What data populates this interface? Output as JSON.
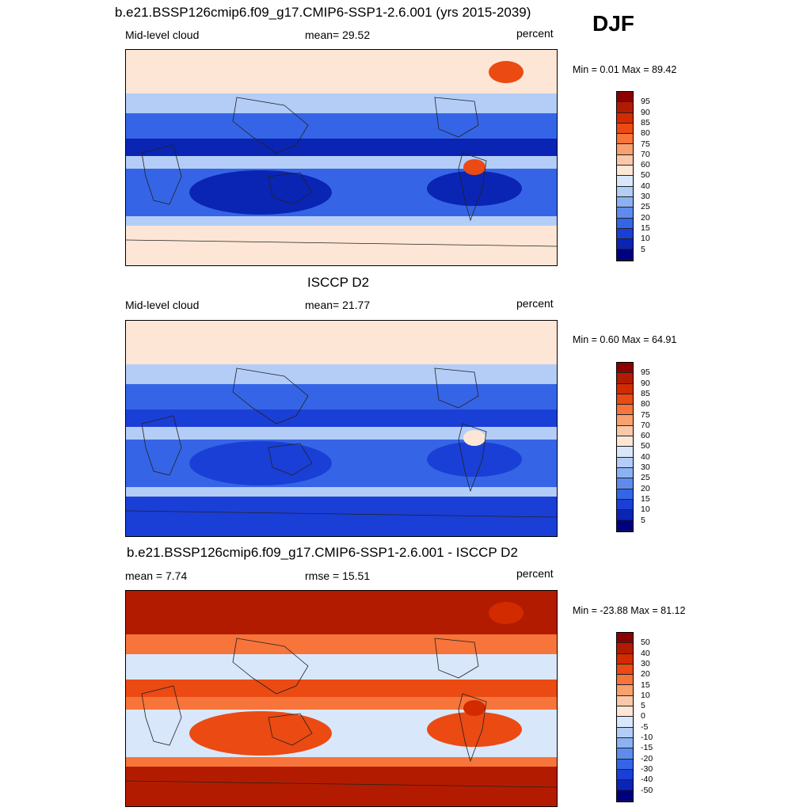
{
  "season": "DJF",
  "panels": [
    {
      "title": "b.e21.BSSP126cmip6.f09_g17.CMIP6-SSP1-2.6.001 (yrs 2015-2039)",
      "left_label": "Mid-level cloud",
      "center_label": "mean=  29.52",
      "units": "percent",
      "minmax": "Min =   0.01 Max =  89.42",
      "colorbar_labels": [
        "95",
        "90",
        "85",
        "80",
        "75",
        "70",
        "60",
        "50",
        "40",
        "30",
        "25",
        "20",
        "15",
        "10",
        "5"
      ],
      "colorbar_colors": [
        "#8b0000",
        "#b31b00",
        "#d22b00",
        "#eb4a13",
        "#f7743a",
        "#f9a06f",
        "#fac7a8",
        "#fde6d6",
        "#d9e7fb",
        "#b3cdf7",
        "#8cb1f2",
        "#5f8cec",
        "#3565e6",
        "#1a3fd6",
        "#0a24b4",
        "#00007e"
      ],
      "palette_map": {
        "south_pole_band": "#fde6d6",
        "tropical_band": "#0a24b4",
        "subtropical_band": "#3565e6",
        "midlat_band": "#b3cdf7",
        "highlight": "#eb4a13"
      }
    },
    {
      "title": "ISCCP D2",
      "left_label": "Mid-level cloud",
      "center_label": "mean=  21.77",
      "units": "percent",
      "minmax": "Min =   0.60 Max =  64.91",
      "colorbar_labels": [
        "95",
        "90",
        "85",
        "80",
        "75",
        "70",
        "60",
        "50",
        "40",
        "30",
        "25",
        "20",
        "15",
        "10",
        "5"
      ],
      "colorbar_colors": [
        "#8b0000",
        "#b31b00",
        "#d22b00",
        "#eb4a13",
        "#f7743a",
        "#f9a06f",
        "#fac7a8",
        "#fde6d6",
        "#d9e7fb",
        "#b3cdf7",
        "#8cb1f2",
        "#5f8cec",
        "#3565e6",
        "#1a3fd6",
        "#0a24b4",
        "#00007e"
      ],
      "palette_map": {
        "south_pole_band": "#1a3fd6",
        "tropical_band": "#1a3fd6",
        "subtropical_band": "#3565e6",
        "midlat_band": "#b3cdf7",
        "highlight": "#fde6d6"
      }
    },
    {
      "title": "b.e21.BSSP126cmip6.f09_g17.CMIP6-SSP1-2.6.001 - ISCCP D2",
      "left_label": "mean =   7.74",
      "center_label": "rmse =  15.51",
      "units": "percent",
      "minmax": "Min = -23.88 Max =  81.12",
      "colorbar_labels": [
        "50",
        "40",
        "30",
        "20",
        "15",
        "10",
        "5",
        "0",
        "-5",
        "-10",
        "-15",
        "-20",
        "-30",
        "-40",
        "-50"
      ],
      "colorbar_colors": [
        "#8b0000",
        "#b31b00",
        "#d22b00",
        "#eb4a13",
        "#f7743a",
        "#f9a06f",
        "#fac7a8",
        "#fde6d6",
        "#d9e7fb",
        "#b3cdf7",
        "#8cb1f2",
        "#5f8cec",
        "#3565e6",
        "#1a3fd6",
        "#0a24b4",
        "#00007e"
      ],
      "palette_map": {
        "south_pole_band": "#b31b00",
        "tropical_band": "#eb4a13",
        "subtropical_band": "#d9e7fb",
        "midlat_band": "#f7743a",
        "highlight": "#d22b00"
      }
    }
  ]
}
